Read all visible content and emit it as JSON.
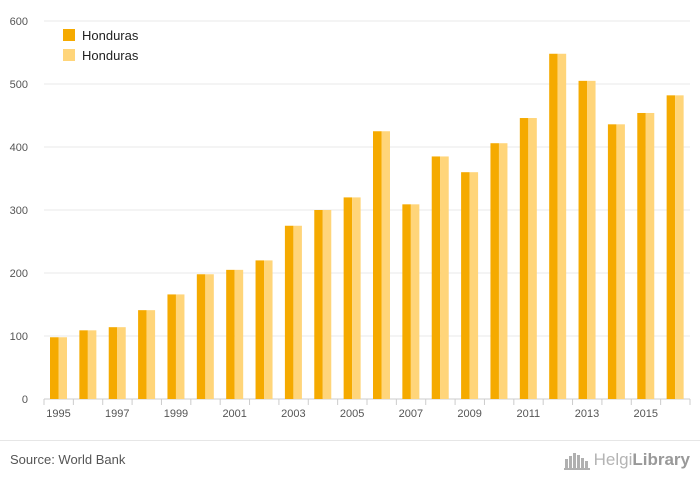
{
  "chart_data": {
    "type": "bar",
    "categories": [
      "1995",
      "1996",
      "1997",
      "1998",
      "1999",
      "2000",
      "2001",
      "2002",
      "2003",
      "2004",
      "2005",
      "2006",
      "2007",
      "2008",
      "2009",
      "2010",
      "2011",
      "2012",
      "2013",
      "2014",
      "2015",
      "2016"
    ],
    "x_tick_labels": [
      "1995",
      "1997",
      "1999",
      "2001",
      "2003",
      "2005",
      "2007",
      "2009",
      "2011",
      "2013",
      "2015"
    ],
    "y_ticks": [
      0,
      100,
      200,
      300,
      400,
      500,
      600
    ],
    "ylim": [
      0,
      600
    ],
    "series": [
      {
        "name": "Honduras",
        "color": "#f5aa00",
        "values": [
          98,
          109,
          114,
          141,
          166,
          198,
          205,
          220,
          275,
          300,
          320,
          425,
          309,
          385,
          360,
          406,
          446,
          548,
          505,
          436,
          454,
          482
        ]
      },
      {
        "name": "Honduras",
        "color": "#ffd57a",
        "values": [
          98,
          109,
          114,
          141,
          166,
          198,
          205,
          220,
          275,
          300,
          320,
          425,
          309,
          385,
          360,
          406,
          446,
          548,
          505,
          436,
          454,
          482
        ]
      }
    ],
    "legend_position": "top-left",
    "grid": true,
    "xlabel": "",
    "ylabel": ""
  },
  "footer": {
    "source": "Source: World Bank",
    "brand_light": "Helgi",
    "brand_bold": "Library"
  },
  "colors": {
    "grid": "#e8e8e8",
    "axis_text": "#555555"
  },
  "icons": {
    "brand_logo": "helgi-library-logo-icon"
  }
}
